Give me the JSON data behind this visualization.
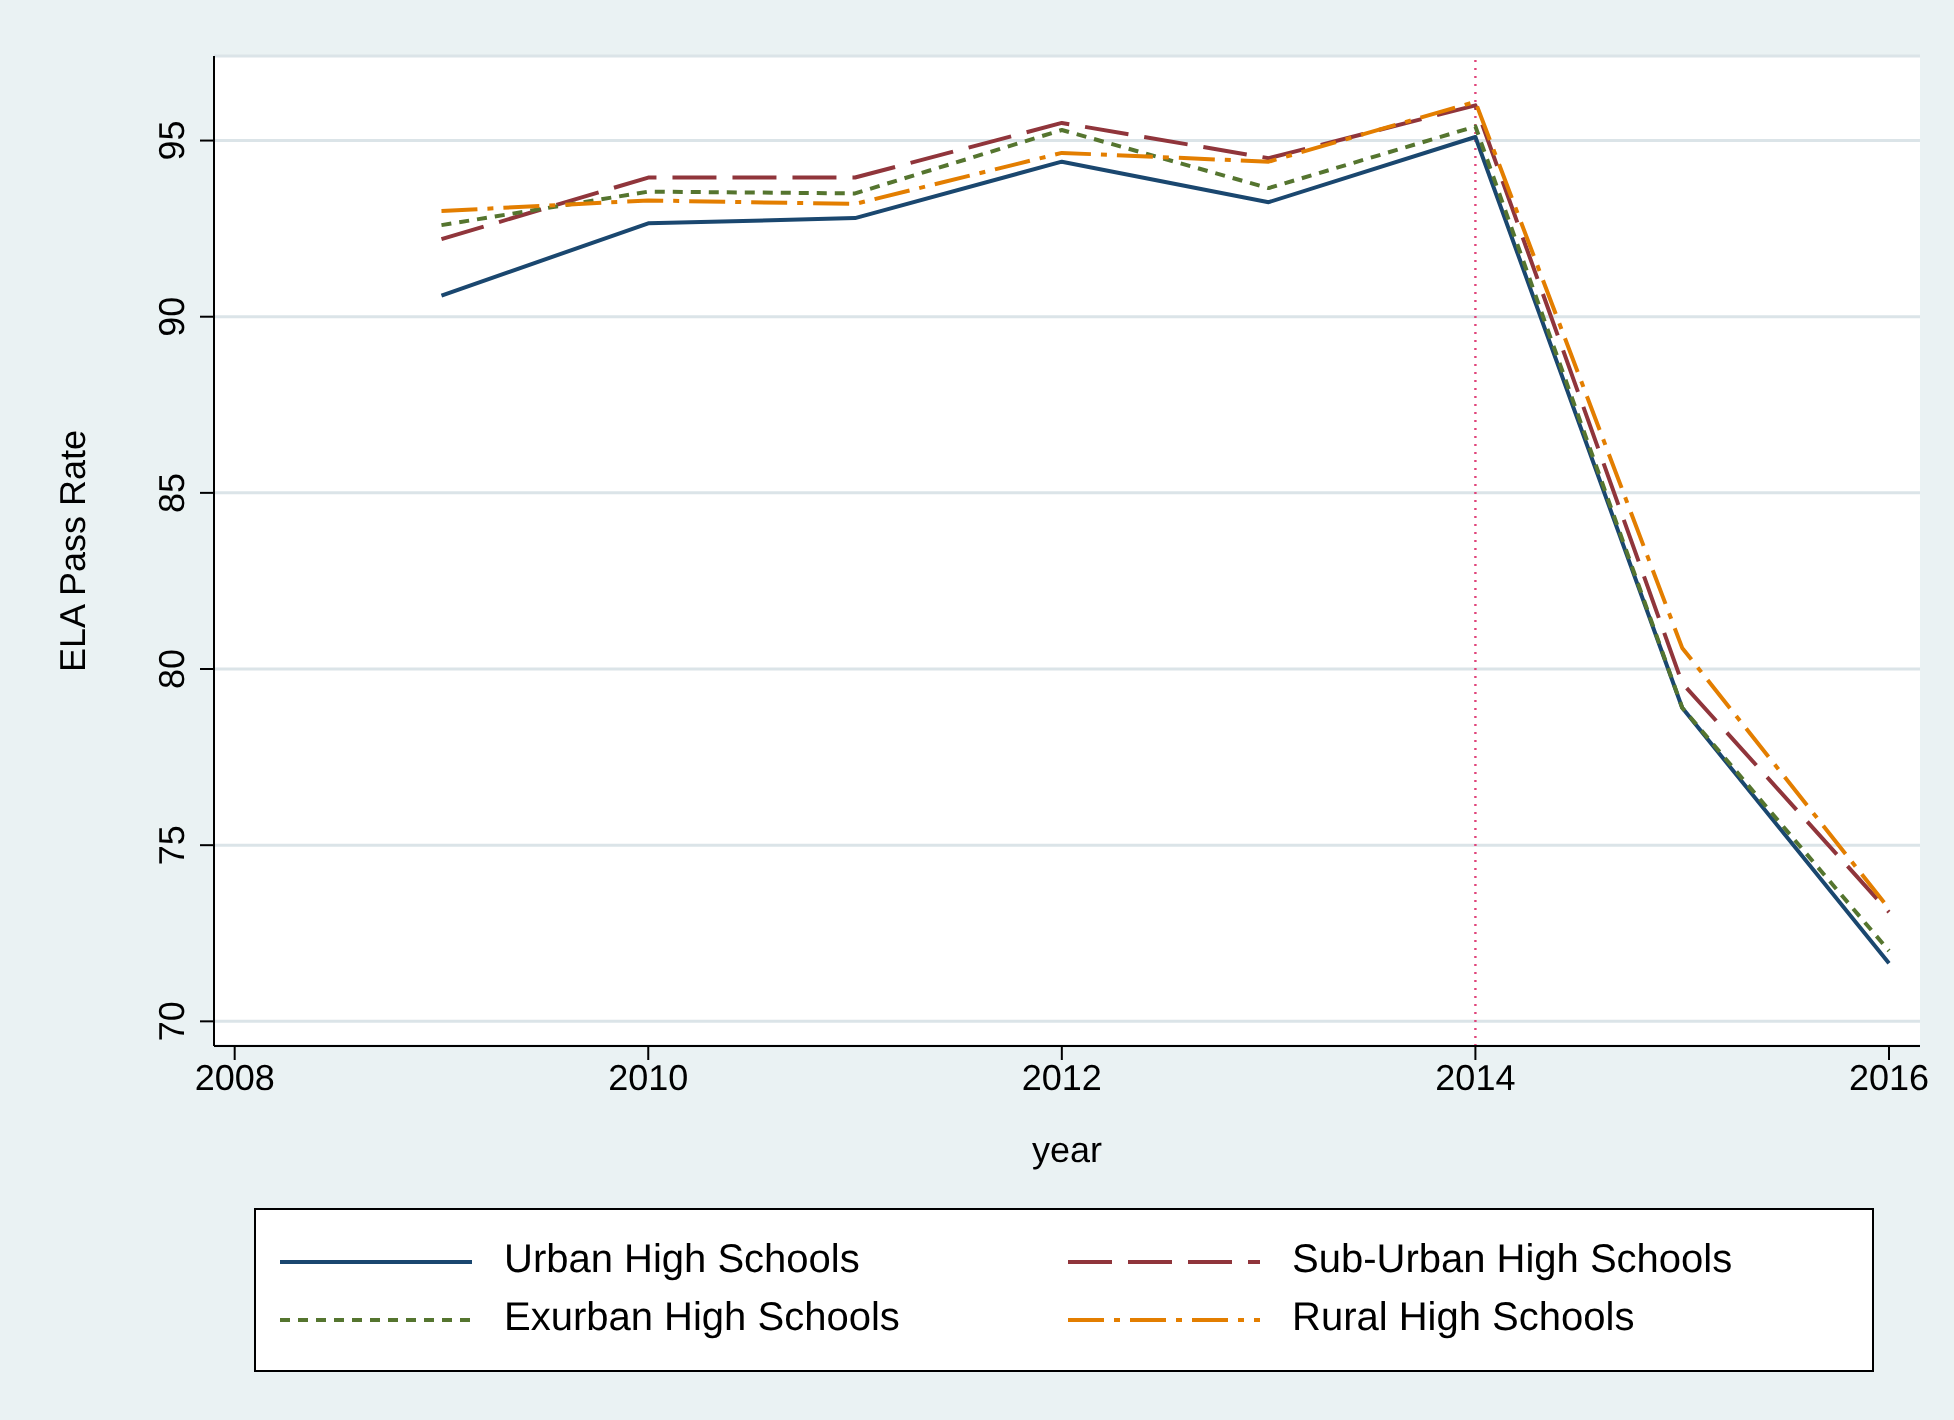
{
  "chart_data": {
    "type": "line",
    "xlabel": "year",
    "ylabel": "ELA Pass Rate",
    "x": [
      2009,
      2010,
      2011,
      2012,
      2013,
      2014,
      2015,
      2016
    ],
    "series": [
      {
        "name": "Urban High Schools",
        "color": "#1a476f",
        "line_style": "solid",
        "values": [
          90.6,
          92.65,
          92.8,
          94.4,
          93.25,
          95.1,
          78.9,
          71.65
        ]
      },
      {
        "name": "Sub-Urban High Schools",
        "color": "#90353b",
        "line_style": "dashed",
        "values": [
          92.2,
          93.95,
          93.95,
          95.5,
          94.5,
          96.0,
          79.6,
          73.1
        ]
      },
      {
        "name": "Exurban High Schools",
        "color": "#55752f",
        "line_style": "dotted",
        "values": [
          92.6,
          93.55,
          93.5,
          95.3,
          93.65,
          95.4,
          78.9,
          72.0
        ]
      },
      {
        "name": "Rural High Schools",
        "color": "#e37e00",
        "line_style": "dashdot",
        "values": [
          93.0,
          93.3,
          93.2,
          94.65,
          94.4,
          96.1,
          80.6,
          73.2
        ]
      }
    ],
    "xlim": [
      2007.9,
      2016.15
    ],
    "xticks": [
      2008,
      2010,
      2012,
      2014,
      2016
    ],
    "ylim": [
      69.3,
      97.4
    ],
    "yticks": [
      70,
      75,
      80,
      85,
      90,
      95
    ],
    "grid": "y",
    "legend": "bottom",
    "marker": "none",
    "ref_lines": [
      {
        "axis": "x",
        "value": 2014,
        "color": "#e0457b",
        "line_style": "dotted"
      }
    ]
  }
}
